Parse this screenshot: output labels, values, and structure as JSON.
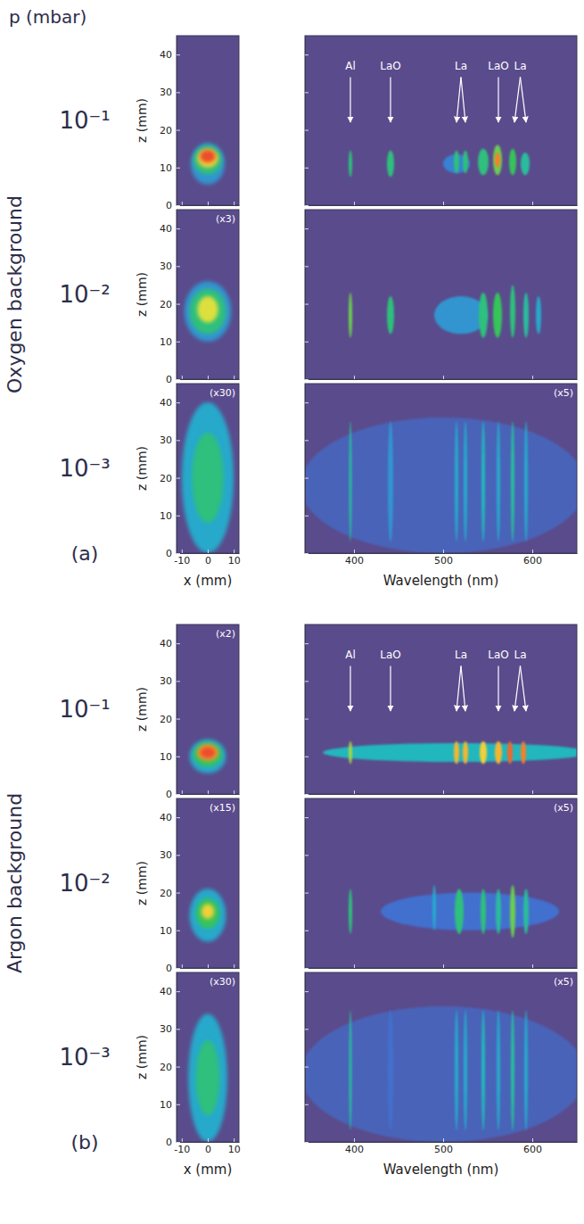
{
  "figure": {
    "pressure_label": "p (mbar)",
    "groups": [
      {
        "name": "Oxygen background",
        "letter": "(a)",
        "pressures": [
          "10⁻¹",
          "10⁻²",
          "10⁻³"
        ]
      },
      {
        "name": "Argon background",
        "letter": "(b)",
        "pressures": [
          "10⁻¹",
          "10⁻²",
          "10⁻³"
        ]
      }
    ]
  },
  "chart_data": [
    {
      "type": "heatmap",
      "xlim": [
        -12,
        12
      ],
      "xticks": [
        -10,
        0,
        10
      ],
      "ylim": [
        0,
        45
      ],
      "yticks": [
        0,
        10,
        20,
        30,
        40
      ],
      "y_label": "z (mm)",
      "tick_labels": "y",
      "color_range": [
        0,
        1
      ],
      "regions": [
        {
          "x": 0,
          "z": 11,
          "rx": 6.5,
          "rz": 5.5,
          "level": 0.25
        },
        {
          "x": 0,
          "z": 12,
          "rx": 5.5,
          "rz": 3.8,
          "level": 0.45
        },
        {
          "x": 0,
          "z": 12.5,
          "rx": 4,
          "rz": 2.5,
          "level": 0.7
        },
        {
          "x": 0,
          "z": 13,
          "rx": 3,
          "rz": 1.7,
          "level": 0.95
        }
      ]
    },
    {
      "type": "heatmap",
      "xlim": [
        345,
        650
      ],
      "xticks": [
        400,
        500,
        600
      ],
      "ylim": [
        0,
        45
      ],
      "yticks": [
        0,
        10,
        20,
        30,
        40
      ],
      "tick_labels": false,
      "color_range": [
        0,
        1
      ],
      "line_labels": [
        {
          "text": "Al",
          "x": 396
        },
        {
          "text": "LaO",
          "x": 441
        },
        {
          "text": "La",
          "x": [
            515,
            525
          ]
        },
        {
          "text": "LaO",
          "x": 562
        },
        {
          "text": "La",
          "x": [
            580,
            593
          ]
        }
      ],
      "regions": [
        {
          "x": 515,
          "z": 11,
          "rx": 15,
          "rz": 2.5,
          "level": 0.2
        },
        {
          "x": 396,
          "z": 11,
          "rx": 2,
          "rz": 3.5,
          "level": 0.45
        },
        {
          "x": 441,
          "z": 11,
          "rx": 4,
          "rz": 3.5,
          "level": 0.45
        },
        {
          "x": 515,
          "z": 11.5,
          "rx": 3,
          "rz": 3,
          "level": 0.45
        },
        {
          "x": 525,
          "z": 11.5,
          "rx": 3,
          "rz": 3,
          "level": 0.45
        },
        {
          "x": 545,
          "z": 11.5,
          "rx": 6,
          "rz": 3.5,
          "level": 0.45
        },
        {
          "x": 561,
          "z": 12,
          "rx": 5,
          "rz": 4,
          "level": 0.55
        },
        {
          "x": 561,
          "z": 12,
          "rx": 3,
          "rz": 2,
          "level": 0.85
        },
        {
          "x": 578,
          "z": 11.5,
          "rx": 4,
          "rz": 3.5,
          "level": 0.5
        },
        {
          "x": 592,
          "z": 11,
          "rx": 5,
          "rz": 3,
          "level": 0.4
        }
      ]
    },
    {
      "type": "heatmap",
      "xlim": [
        -12,
        12
      ],
      "xticks": [
        -10,
        0,
        10
      ],
      "ylim": [
        0,
        45
      ],
      "yticks": [
        0,
        10,
        20,
        30,
        40
      ],
      "y_label": "z (mm)",
      "tick_labels": "y",
      "color_range": [
        0,
        1
      ],
      "annotation": "(x3)",
      "regions": [
        {
          "x": 0,
          "z": 18,
          "rx": 9,
          "rz": 8,
          "level": 0.25
        },
        {
          "x": 0,
          "z": 18,
          "rx": 7,
          "rz": 6,
          "level": 0.45
        },
        {
          "x": 0,
          "z": 18.5,
          "rx": 4,
          "rz": 3.5,
          "level": 0.65
        }
      ]
    },
    {
      "type": "heatmap",
      "xlim": [
        345,
        650
      ],
      "xticks": [
        400,
        500,
        600
      ],
      "ylim": [
        0,
        45
      ],
      "yticks": [
        0,
        10,
        20,
        30,
        40
      ],
      "tick_labels": false,
      "color_range": [
        0,
        1
      ],
      "regions": [
        {
          "x": 520,
          "z": 17,
          "rx": 30,
          "rz": 5,
          "level": 0.25
        },
        {
          "x": 396,
          "z": 17,
          "rx": 2,
          "rz": 6,
          "level": 0.55
        },
        {
          "x": 441,
          "z": 17,
          "rx": 4,
          "rz": 5,
          "level": 0.45
        },
        {
          "x": 545,
          "z": 17,
          "rx": 5,
          "rz": 6,
          "level": 0.45
        },
        {
          "x": 561,
          "z": 17,
          "rx": 5,
          "rz": 6,
          "level": 0.5
        },
        {
          "x": 578,
          "z": 18,
          "rx": 3,
          "rz": 7,
          "level": 0.45
        },
        {
          "x": 593,
          "z": 17,
          "rx": 3,
          "rz": 6,
          "level": 0.4
        },
        {
          "x": 607,
          "z": 17,
          "rx": 3,
          "rz": 5,
          "level": 0.3
        }
      ]
    },
    {
      "type": "heatmap",
      "xlim": [
        -12,
        12
      ],
      "xticks": [
        -10,
        0,
        10
      ],
      "ylim": [
        0,
        45
      ],
      "yticks": [
        0,
        10,
        20,
        30,
        40
      ],
      "x_label": "x (mm)",
      "y_label": "z (mm)",
      "tick_labels": true,
      "color_range": [
        0,
        1
      ],
      "annotation": "(x30)",
      "regions": [
        {
          "x": 0,
          "z": 20,
          "rx": 10,
          "rz": 20,
          "level": 0.3
        },
        {
          "x": 0,
          "z": 20,
          "rx": 6,
          "rz": 12,
          "level": 0.45
        }
      ]
    },
    {
      "type": "heatmap",
      "xlim": [
        345,
        650
      ],
      "xticks": [
        400,
        500,
        600
      ],
      "ylim": [
        0,
        45
      ],
      "yticks": [
        0,
        10,
        20,
        30,
        40
      ],
      "x_label": "Wavelength (nm)",
      "tick_labels": "x",
      "color_range": [
        0,
        1
      ],
      "annotation": "(x5)",
      "regions": [
        {
          "x": 500,
          "z": 18,
          "rx": 160,
          "rz": 18,
          "level": 0.1
        },
        {
          "x": 396,
          "z": 19,
          "rx": 1.5,
          "rz": 16,
          "level": 0.4
        },
        {
          "x": 441,
          "z": 19,
          "rx": 3,
          "rz": 16,
          "level": 0.25
        },
        {
          "x": 515,
          "z": 19,
          "rx": 2,
          "rz": 16,
          "level": 0.3
        },
        {
          "x": 525,
          "z": 19,
          "rx": 2,
          "rz": 16,
          "level": 0.3
        },
        {
          "x": 545,
          "z": 19,
          "rx": 2,
          "rz": 16,
          "level": 0.35
        },
        {
          "x": 562,
          "z": 19,
          "rx": 2,
          "rz": 16,
          "level": 0.3
        },
        {
          "x": 578,
          "z": 19,
          "rx": 2,
          "rz": 16,
          "level": 0.4
        },
        {
          "x": 593,
          "z": 19,
          "rx": 2,
          "rz": 16,
          "level": 0.3
        }
      ]
    },
    {
      "type": "heatmap",
      "xlim": [
        -12,
        12
      ],
      "xticks": [
        -10,
        0,
        10
      ],
      "ylim": [
        0,
        45
      ],
      "yticks": [
        0,
        10,
        20,
        30,
        40
      ],
      "y_label": "z (mm)",
      "tick_labels": "y",
      "color_range": [
        0,
        1
      ],
      "annotation": "(x2)",
      "regions": [
        {
          "x": 0,
          "z": 10,
          "rx": 7,
          "rz": 4.5,
          "level": 0.3
        },
        {
          "x": 0,
          "z": 10.5,
          "rx": 5.5,
          "rz": 3.2,
          "level": 0.5
        },
        {
          "x": 0,
          "z": 11,
          "rx": 4,
          "rz": 2.2,
          "level": 0.8
        },
        {
          "x": 0,
          "z": 11,
          "rx": 3,
          "rz": 1.5,
          "level": 0.95
        }
      ]
    },
    {
      "type": "heatmap",
      "xlim": [
        345,
        650
      ],
      "xticks": [
        400,
        500,
        600
      ],
      "ylim": [
        0,
        45
      ],
      "yticks": [
        0,
        10,
        20,
        30,
        40
      ],
      "tick_labels": false,
      "color_range": [
        0,
        1
      ],
      "line_labels": [
        {
          "text": "Al",
          "x": 396
        },
        {
          "text": "LaO",
          "x": 441
        },
        {
          "text": "La",
          "x": [
            515,
            525
          ]
        },
        {
          "text": "LaO",
          "x": 562
        },
        {
          "text": "La",
          "x": [
            580,
            593
          ]
        }
      ],
      "regions": [
        {
          "x": 515,
          "z": 11,
          "rx": 150,
          "rz": 2.5,
          "level": 0.35
        },
        {
          "x": 396,
          "z": 11,
          "rx": 2,
          "rz": 3,
          "level": 0.6
        },
        {
          "x": 515,
          "z": 11,
          "rx": 3,
          "rz": 3,
          "level": 0.75
        },
        {
          "x": 525,
          "z": 11,
          "rx": 3,
          "rz": 3,
          "level": 0.75
        },
        {
          "x": 545,
          "z": 11,
          "rx": 4,
          "rz": 3,
          "level": 0.7
        },
        {
          "x": 562,
          "z": 11,
          "rx": 4,
          "rz": 3,
          "level": 0.75
        },
        {
          "x": 575,
          "z": 11,
          "rx": 3,
          "rz": 3,
          "level": 0.9
        },
        {
          "x": 590,
          "z": 11,
          "rx": 3,
          "rz": 3,
          "level": 0.85
        }
      ]
    },
    {
      "type": "heatmap",
      "xlim": [
        -12,
        12
      ],
      "xticks": [
        -10,
        0,
        10
      ],
      "ylim": [
        0,
        45
      ],
      "yticks": [
        0,
        10,
        20,
        30,
        40
      ],
      "y_label": "z (mm)",
      "tick_labels": "y",
      "color_range": [
        0,
        1
      ],
      "annotation": "(x15)",
      "regions": [
        {
          "x": 0,
          "z": 14,
          "rx": 7,
          "rz": 7,
          "level": 0.3
        },
        {
          "x": 0,
          "z": 14.5,
          "rx": 4.5,
          "rz": 4,
          "level": 0.5
        },
        {
          "x": 0,
          "z": 15,
          "rx": 2.5,
          "rz": 2,
          "level": 0.7
        }
      ]
    },
    {
      "type": "heatmap",
      "xlim": [
        345,
        650
      ],
      "xticks": [
        400,
        500,
        600
      ],
      "ylim": [
        0,
        45
      ],
      "yticks": [
        0,
        10,
        20,
        30,
        40
      ],
      "tick_labels": false,
      "color_range": [
        0,
        1
      ],
      "annotation": "(x5)",
      "regions": [
        {
          "x": 530,
          "z": 15,
          "rx": 100,
          "rz": 5,
          "level": 0.15
        },
        {
          "x": 396,
          "z": 15,
          "rx": 2,
          "rz": 6,
          "level": 0.45
        },
        {
          "x": 490,
          "z": 16,
          "rx": 2,
          "rz": 6,
          "level": 0.3
        },
        {
          "x": 518,
          "z": 15,
          "rx": 5,
          "rz": 6,
          "level": 0.45
        },
        {
          "x": 545,
          "z": 15,
          "rx": 3,
          "rz": 6,
          "level": 0.45
        },
        {
          "x": 562,
          "z": 15,
          "rx": 3,
          "rz": 6,
          "level": 0.4
        },
        {
          "x": 578,
          "z": 15,
          "rx": 3,
          "rz": 7,
          "level": 0.55
        },
        {
          "x": 593,
          "z": 15,
          "rx": 3,
          "rz": 6,
          "level": 0.4
        }
      ]
    },
    {
      "type": "heatmap",
      "xlim": [
        -12,
        12
      ],
      "xticks": [
        -10,
        0,
        10
      ],
      "ylim": [
        0,
        45
      ],
      "yticks": [
        0,
        10,
        20,
        30,
        40
      ],
      "x_label": "x (mm)",
      "y_label": "z (mm)",
      "tick_labels": true,
      "color_range": [
        0,
        1
      ],
      "annotation": "(x30)",
      "regions": [
        {
          "x": 0,
          "z": 17,
          "rx": 7.5,
          "rz": 17,
          "level": 0.3
        },
        {
          "x": 0,
          "z": 17,
          "rx": 4.5,
          "rz": 10,
          "level": 0.45
        }
      ]
    },
    {
      "type": "heatmap",
      "xlim": [
        345,
        650
      ],
      "xticks": [
        400,
        500,
        600
      ],
      "ylim": [
        0,
        45
      ],
      "yticks": [
        0,
        10,
        20,
        30,
        40
      ],
      "x_label": "Wavelength (nm)",
      "tick_labels": "x",
      "color_range": [
        0,
        1
      ],
      "annotation": "(x5)",
      "regions": [
        {
          "x": 500,
          "z": 18,
          "rx": 160,
          "rz": 18,
          "level": 0.1
        },
        {
          "x": 396,
          "z": 19,
          "rx": 1.5,
          "rz": 16,
          "level": 0.4
        },
        {
          "x": 441,
          "z": 19,
          "rx": 3,
          "rz": 16,
          "level": 0.15
        },
        {
          "x": 515,
          "z": 19,
          "rx": 2,
          "rz": 16,
          "level": 0.3
        },
        {
          "x": 525,
          "z": 19,
          "rx": 2,
          "rz": 16,
          "level": 0.3
        },
        {
          "x": 545,
          "z": 19,
          "rx": 2,
          "rz": 16,
          "level": 0.35
        },
        {
          "x": 562,
          "z": 19,
          "rx": 2,
          "rz": 16,
          "level": 0.3
        },
        {
          "x": 578,
          "z": 19,
          "rx": 2,
          "rz": 16,
          "level": 0.4
        },
        {
          "x": 593,
          "z": 19,
          "rx": 2,
          "rz": 16,
          "level": 0.3
        }
      ]
    }
  ]
}
